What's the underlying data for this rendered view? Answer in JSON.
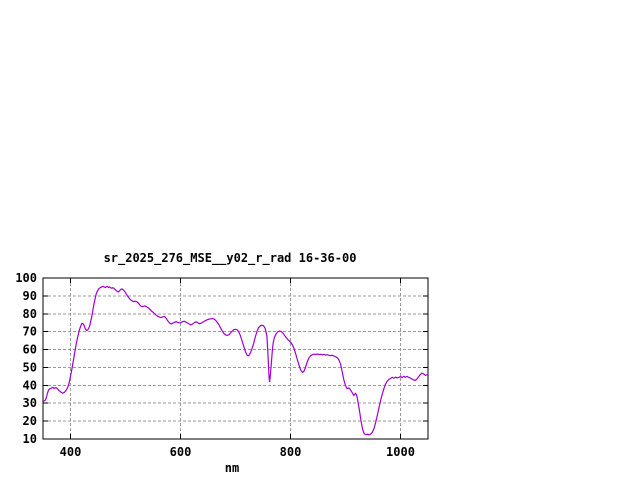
{
  "window": {
    "background": "#ffffff"
  },
  "chart_data": {
    "type": "line",
    "title": "sr_2025_276_MSE__y02_r_rad 16-36-00",
    "xlabel": "nm",
    "ylabel": "",
    "xlim": [
      350,
      1050
    ],
    "ylim": [
      10,
      100
    ],
    "x_ticks": [
      400,
      600,
      800,
      1000
    ],
    "y_ticks": [
      10,
      20,
      30,
      40,
      50,
      60,
      70,
      80,
      90,
      100
    ],
    "grid": true,
    "legend": "none",
    "line_color": "#A000D0",
    "grid_color": "#999999",
    "axis_color": "#000000",
    "series": [
      {
        "points": [
          [
            350,
            31.2
          ],
          [
            352,
            31.3
          ],
          [
            354,
            31.7
          ],
          [
            356,
            33.0
          ],
          [
            358,
            35.5
          ],
          [
            360,
            37.3
          ],
          [
            362,
            38.0
          ],
          [
            364,
            38.3
          ],
          [
            366,
            38.6
          ],
          [
            368,
            38.9
          ],
          [
            370,
            38.3
          ],
          [
            372,
            38.5
          ],
          [
            374,
            38.7
          ],
          [
            376,
            38.2
          ],
          [
            378,
            37.5
          ],
          [
            380,
            36.9
          ],
          [
            383,
            36.2
          ],
          [
            386,
            35.6
          ],
          [
            389,
            36.1
          ],
          [
            392,
            37.2
          ],
          [
            395,
            39.0
          ],
          [
            398,
            42.0
          ],
          [
            401,
            46.5
          ],
          [
            404,
            51.5
          ],
          [
            407,
            57.0
          ],
          [
            410,
            62.5
          ],
          [
            413,
            67.0
          ],
          [
            416,
            70.8
          ],
          [
            419,
            73.5
          ],
          [
            421,
            74.7
          ],
          [
            423,
            74.3
          ],
          [
            425,
            73.2
          ],
          [
            427,
            71.6
          ],
          [
            429,
            70.7
          ],
          [
            431,
            70.9
          ],
          [
            433,
            71.8
          ],
          [
            435,
            73.5
          ],
          [
            437,
            76.0
          ],
          [
            439,
            79.0
          ],
          [
            441,
            82.5
          ],
          [
            443,
            86.0
          ],
          [
            445,
            89.0
          ],
          [
            447,
            91.2
          ],
          [
            449,
            92.8
          ],
          [
            451,
            93.8
          ],
          [
            453,
            94.4
          ],
          [
            455,
            94.8
          ],
          [
            457,
            95.1
          ],
          [
            459,
            95.3
          ],
          [
            461,
            95.0
          ],
          [
            463,
            94.7
          ],
          [
            465,
            95.1
          ],
          [
            467,
            95.3
          ],
          [
            469,
            94.7
          ],
          [
            471,
            95.0
          ],
          [
            473,
            94.6
          ],
          [
            475,
            94.3
          ],
          [
            477,
            94.6
          ],
          [
            479,
            94.2
          ],
          [
            481,
            93.7
          ],
          [
            483,
            93.0
          ],
          [
            485,
            92.5
          ],
          [
            487,
            92.2
          ],
          [
            489,
            92.8
          ],
          [
            491,
            93.5
          ],
          [
            493,
            93.9
          ],
          [
            495,
            93.6
          ],
          [
            497,
            93.0
          ],
          [
            499,
            92.3
          ],
          [
            501,
            91.3
          ],
          [
            503,
            90.3
          ],
          [
            505,
            89.4
          ],
          [
            507,
            88.6
          ],
          [
            509,
            87.9
          ],
          [
            511,
            87.4
          ],
          [
            513,
            87.0
          ],
          [
            515,
            86.8
          ],
          [
            517,
            87.1
          ],
          [
            519,
            87.0
          ],
          [
            521,
            86.6
          ],
          [
            523,
            86.1
          ],
          [
            525,
            85.3
          ],
          [
            527,
            84.6
          ],
          [
            529,
            84.2
          ],
          [
            531,
            84.0
          ],
          [
            533,
            84.2
          ],
          [
            535,
            84.4
          ],
          [
            537,
            84.1
          ],
          [
            539,
            83.8
          ],
          [
            541,
            83.4
          ],
          [
            543,
            82.9
          ],
          [
            545,
            82.3
          ],
          [
            547,
            81.6
          ],
          [
            550,
            80.9
          ],
          [
            553,
            80.0
          ],
          [
            556,
            79.2
          ],
          [
            559,
            78.6
          ],
          [
            562,
            78.1
          ],
          [
            565,
            77.9
          ],
          [
            568,
            78.3
          ],
          [
            571,
            78.5
          ],
          [
            574,
            77.5
          ],
          [
            577,
            76.0
          ],
          [
            580,
            74.9
          ],
          [
            583,
            74.3
          ],
          [
            586,
            74.8
          ],
          [
            589,
            75.2
          ],
          [
            592,
            75.6
          ],
          [
            595,
            75.2
          ],
          [
            598,
            74.9
          ],
          [
            601,
            75.2
          ],
          [
            604,
            75.6
          ],
          [
            607,
            75.8
          ],
          [
            610,
            75.3
          ],
          [
            613,
            74.8
          ],
          [
            616,
            74.3
          ],
          [
            619,
            73.8
          ],
          [
            622,
            74.3
          ],
          [
            625,
            75.0
          ],
          [
            628,
            75.5
          ],
          [
            631,
            75.2
          ],
          [
            634,
            74.4
          ],
          [
            637,
            74.7
          ],
          [
            640,
            75.2
          ],
          [
            643,
            75.8
          ],
          [
            646,
            76.3
          ],
          [
            649,
            76.7
          ],
          [
            652,
            77.0
          ],
          [
            655,
            77.2
          ],
          [
            658,
            77.3
          ],
          [
            661,
            77.0
          ],
          [
            664,
            76.3
          ],
          [
            667,
            75.2
          ],
          [
            670,
            73.8
          ],
          [
            673,
            72.0
          ],
          [
            676,
            70.3
          ],
          [
            679,
            69.0
          ],
          [
            682,
            68.2
          ],
          [
            685,
            67.9
          ],
          [
            688,
            68.3
          ],
          [
            691,
            69.3
          ],
          [
            694,
            70.4
          ],
          [
            697,
            71.1
          ],
          [
            700,
            71.4
          ],
          [
            703,
            71.0
          ],
          [
            706,
            69.8
          ],
          [
            709,
            67.8
          ],
          [
            712,
            64.8
          ],
          [
            715,
            61.8
          ],
          [
            718,
            58.8
          ],
          [
            721,
            56.8
          ],
          [
            724,
            56.5
          ],
          [
            727,
            58.0
          ],
          [
            730,
            60.5
          ],
          [
            733,
            63.5
          ],
          [
            736,
            67.0
          ],
          [
            739,
            70.0
          ],
          [
            742,
            72.2
          ],
          [
            745,
            73.3
          ],
          [
            748,
            73.6
          ],
          [
            751,
            73.2
          ],
          [
            754,
            71.8
          ],
          [
            757,
            67.5
          ],
          [
            759,
            58.0
          ],
          [
            761,
            44.0
          ],
          [
            762,
            41.8
          ],
          [
            763,
            44.0
          ],
          [
            765,
            52.0
          ],
          [
            767,
            60.0
          ],
          [
            769,
            64.5
          ],
          [
            771,
            67.0
          ],
          [
            774,
            68.8
          ],
          [
            777,
            70.0
          ],
          [
            780,
            70.4
          ],
          [
            783,
            70.1
          ],
          [
            786,
            69.3
          ],
          [
            789,
            68.0
          ],
          [
            792,
            66.8
          ],
          [
            795,
            65.6
          ],
          [
            798,
            64.7
          ],
          [
            801,
            63.8
          ],
          [
            804,
            62.3
          ],
          [
            807,
            60.0
          ],
          [
            810,
            57.0
          ],
          [
            813,
            53.8
          ],
          [
            816,
            50.8
          ],
          [
            819,
            48.3
          ],
          [
            822,
            47.2
          ],
          [
            825,
            48.2
          ],
          [
            828,
            50.8
          ],
          [
            831,
            53.6
          ],
          [
            834,
            55.6
          ],
          [
            837,
            56.7
          ],
          [
            840,
            57.2
          ],
          [
            843,
            57.4
          ],
          [
            846,
            57.3
          ],
          [
            849,
            57.5
          ],
          [
            852,
            57.2
          ],
          [
            855,
            57.4
          ],
          [
            858,
            57.0
          ],
          [
            861,
            57.3
          ],
          [
            864,
            56.9
          ],
          [
            867,
            57.1
          ],
          [
            870,
            56.8
          ],
          [
            873,
            56.6
          ],
          [
            876,
            56.8
          ],
          [
            879,
            56.4
          ],
          [
            882,
            56.0
          ],
          [
            885,
            55.4
          ],
          [
            888,
            54.2
          ],
          [
            891,
            51.8
          ],
          [
            894,
            47.5
          ],
          [
            897,
            43.0
          ],
          [
            900,
            39.8
          ],
          [
            903,
            38.2
          ],
          [
            906,
            38.5
          ],
          [
            909,
            37.6
          ],
          [
            912,
            36.0
          ],
          [
            915,
            34.4
          ],
          [
            918,
            35.5
          ],
          [
            920,
            34.8
          ],
          [
            922,
            32.0
          ],
          [
            925,
            26.5
          ],
          [
            928,
            20.5
          ],
          [
            931,
            15.5
          ],
          [
            934,
            13.0
          ],
          [
            937,
            12.4
          ],
          [
            940,
            12.6
          ],
          [
            943,
            12.4
          ],
          [
            946,
            12.8
          ],
          [
            949,
            13.8
          ],
          [
            952,
            16.0
          ],
          [
            955,
            19.5
          ],
          [
            958,
            23.5
          ],
          [
            961,
            27.8
          ],
          [
            964,
            31.8
          ],
          [
            967,
            35.3
          ],
          [
            970,
            38.3
          ],
          [
            973,
            40.8
          ],
          [
            976,
            42.4
          ],
          [
            979,
            43.4
          ],
          [
            982,
            43.9
          ],
          [
            985,
            44.5
          ],
          [
            988,
            44.0
          ],
          [
            991,
            44.6
          ],
          [
            994,
            44.1
          ],
          [
            997,
            44.5
          ],
          [
            1000,
            44.9
          ],
          [
            1003,
            44.3
          ],
          [
            1006,
            45.1
          ],
          [
            1009,
            44.5
          ],
          [
            1012,
            45.0
          ],
          [
            1015,
            44.4
          ],
          [
            1018,
            44.1
          ],
          [
            1021,
            43.5
          ],
          [
            1024,
            43.0
          ],
          [
            1027,
            42.8
          ],
          [
            1030,
            43.6
          ],
          [
            1033,
            44.8
          ],
          [
            1036,
            46.0
          ],
          [
            1039,
            46.8
          ],
          [
            1042,
            46.4
          ],
          [
            1045,
            45.6
          ],
          [
            1048,
            45.9
          ],
          [
            1050,
            46.1
          ]
        ]
      }
    ]
  }
}
